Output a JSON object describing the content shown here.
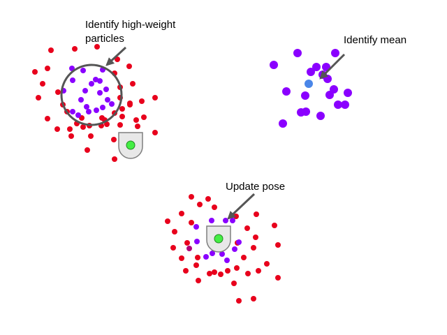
{
  "labels": {
    "identify_particles_line1": "Identify high-weight",
    "identify_particles_line2": "particles",
    "identify_mean": "Identify mean",
    "update_pose": "Update pose"
  },
  "colors": {
    "low_weight_particle": "#e8001c",
    "high_weight_particle": "#8a00ff",
    "mid_particle": "#b0007a",
    "mean_marker": "#4a86e8",
    "robot_body": "#e8e8e8",
    "robot_outline": "#7f7f7f",
    "robot_center": "#44ee44",
    "circle_outline": "#555555",
    "arrow": "#555555"
  },
  "icons": [
    "robot-icon",
    "selection-circle",
    "pointer-arrow"
  ]
}
